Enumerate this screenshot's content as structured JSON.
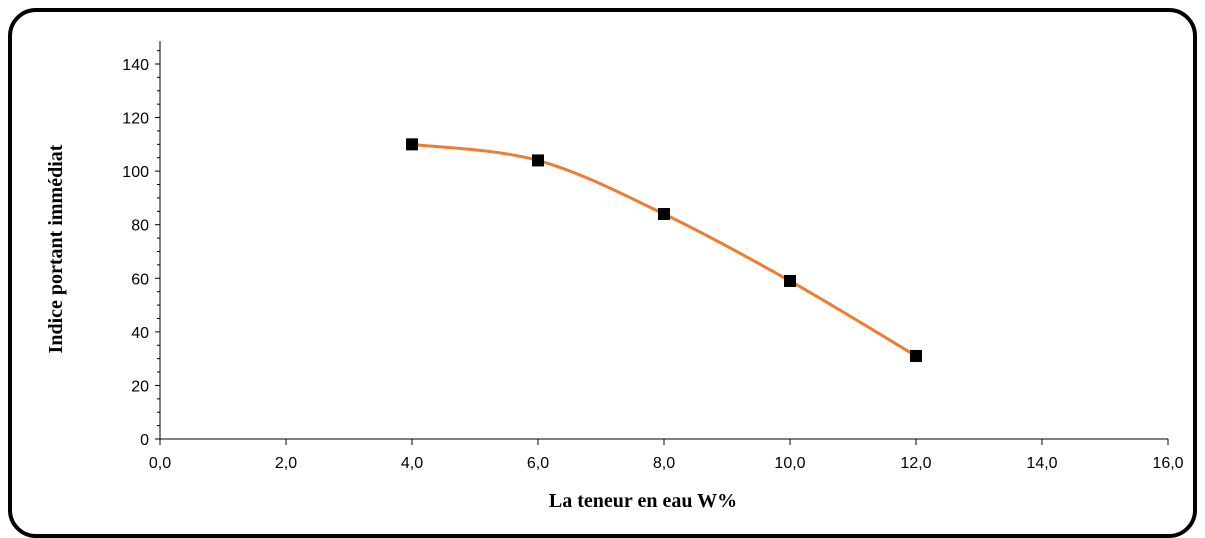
{
  "chart_data": {
    "type": "line",
    "xlabel": "La teneur en eau W%",
    "ylabel": "Indice portant immédiat",
    "xlim": [
      0,
      16
    ],
    "ylim": [
      0,
      150
    ],
    "x_ticks": [
      "0,0",
      "2,0",
      "4,0",
      "6,0",
      "8,0",
      "10,0",
      "12,0",
      "14,0",
      "16,0"
    ],
    "y_ticks": [
      "0",
      "20",
      "40",
      "60",
      "80",
      "100",
      "120",
      "140"
    ],
    "x_tick_values": [
      0,
      2,
      4,
      6,
      8,
      10,
      12,
      14,
      16
    ],
    "y_tick_values": [
      0,
      20,
      40,
      60,
      80,
      100,
      120,
      140
    ],
    "grid": false,
    "legend": "none",
    "smooth": true,
    "line_color": "#ED7D31",
    "marker_color": "#000000",
    "marker": "square",
    "series": [
      {
        "x": [
          4,
          6,
          8,
          10,
          12
        ],
        "y": [
          110,
          104,
          84,
          59,
          31
        ]
      }
    ]
  }
}
